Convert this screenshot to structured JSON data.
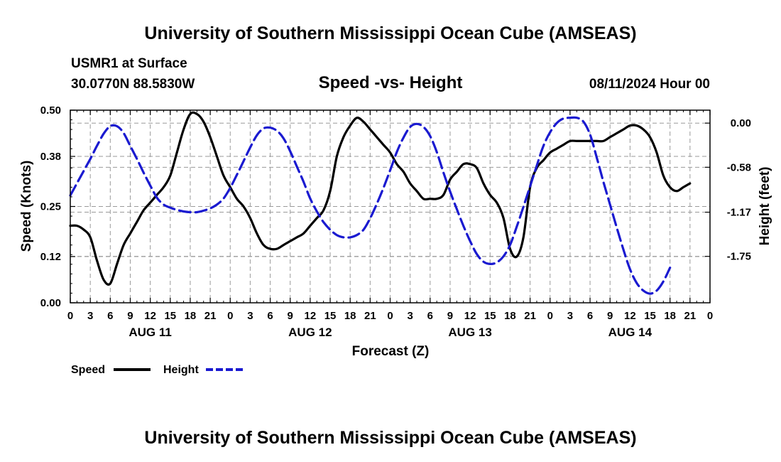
{
  "page": {
    "title_top": "University of Southern Mississippi Ocean Cube (AMSEAS)",
    "title_bottom": "University of Southern Mississippi Ocean Cube (AMSEAS)",
    "station": "USMR1 at Surface",
    "coords": "30.0770N  88.5830W",
    "date": "08/11/2024 Hour 00"
  },
  "chart_data": {
    "type": "line",
    "title": "Speed -vs- Height",
    "xlabel": "Forecast (Z)",
    "ylabel": "Speed (Knots)",
    "y2label": "Height (feet)",
    "ylim": [
      0,
      0.5
    ],
    "y2lim": [
      -2.36,
      0.17
    ],
    "xlim": [
      0,
      96
    ],
    "yticks": [
      "0.00",
      "0.12",
      "0.25",
      "0.38",
      "0.50"
    ],
    "y2ticks": [
      "0.00",
      "-0.58",
      "-1.17",
      "-1.75"
    ],
    "xtick_labels": [
      "0",
      "3",
      "6",
      "9",
      "12",
      "15",
      "18",
      "21",
      "0",
      "3",
      "6",
      "9",
      "12",
      "15",
      "18",
      "21",
      "0",
      "3",
      "6",
      "9",
      "12",
      "15",
      "18",
      "21",
      "0",
      "3",
      "6",
      "9",
      "12",
      "15",
      "18",
      "21",
      "0"
    ],
    "day_labels": [
      "AUG 11",
      "AUG 12",
      "AUG 13",
      "AUG 14"
    ],
    "grid": true,
    "legend": [
      "Speed",
      "Height"
    ],
    "series": [
      {
        "name": "Speed",
        "axis": "left",
        "color": "#000000",
        "style": "solid",
        "points": [
          [
            0,
            0.2
          ],
          [
            1,
            0.2
          ],
          [
            2,
            0.19
          ],
          [
            3,
            0.17
          ],
          [
            4,
            0.11
          ],
          [
            5,
            0.06
          ],
          [
            6,
            0.05
          ],
          [
            7,
            0.1
          ],
          [
            8,
            0.15
          ],
          [
            9,
            0.18
          ],
          [
            10,
            0.21
          ],
          [
            11,
            0.24
          ],
          [
            12,
            0.26
          ],
          [
            13,
            0.28
          ],
          [
            14,
            0.3
          ],
          [
            15,
            0.33
          ],
          [
            16,
            0.39
          ],
          [
            17,
            0.45
          ],
          [
            18,
            0.49
          ],
          [
            19,
            0.49
          ],
          [
            20,
            0.47
          ],
          [
            21,
            0.43
          ],
          [
            22,
            0.38
          ],
          [
            23,
            0.33
          ],
          [
            24,
            0.3
          ],
          [
            25,
            0.27
          ],
          [
            26,
            0.25
          ],
          [
            27,
            0.22
          ],
          [
            28,
            0.18
          ],
          [
            29,
            0.15
          ],
          [
            30,
            0.14
          ],
          [
            31,
            0.14
          ],
          [
            32,
            0.15
          ],
          [
            33,
            0.16
          ],
          [
            34,
            0.17
          ],
          [
            35,
            0.18
          ],
          [
            36,
            0.2
          ],
          [
            37,
            0.22
          ],
          [
            38,
            0.24
          ],
          [
            39,
            0.29
          ],
          [
            40,
            0.38
          ],
          [
            41,
            0.43
          ],
          [
            42,
            0.46
          ],
          [
            43,
            0.48
          ],
          [
            44,
            0.47
          ],
          [
            45,
            0.45
          ],
          [
            46,
            0.43
          ],
          [
            47,
            0.41
          ],
          [
            48,
            0.39
          ],
          [
            49,
            0.36
          ],
          [
            50,
            0.34
          ],
          [
            51,
            0.31
          ],
          [
            52,
            0.29
          ],
          [
            53,
            0.27
          ],
          [
            54,
            0.27
          ],
          [
            55,
            0.27
          ],
          [
            56,
            0.28
          ],
          [
            57,
            0.32
          ],
          [
            58,
            0.34
          ],
          [
            59,
            0.36
          ],
          [
            60,
            0.36
          ],
          [
            61,
            0.35
          ],
          [
            62,
            0.31
          ],
          [
            63,
            0.28
          ],
          [
            64,
            0.26
          ],
          [
            65,
            0.22
          ],
          [
            66,
            0.14
          ],
          [
            67,
            0.12
          ],
          [
            68,
            0.17
          ],
          [
            69,
            0.3
          ],
          [
            70,
            0.35
          ],
          [
            71,
            0.37
          ],
          [
            72,
            0.39
          ],
          [
            73,
            0.4
          ],
          [
            74,
            0.41
          ],
          [
            75,
            0.42
          ],
          [
            76,
            0.42
          ],
          [
            77,
            0.42
          ],
          [
            78,
            0.42
          ],
          [
            79,
            0.42
          ],
          [
            80,
            0.42
          ],
          [
            81,
            0.43
          ],
          [
            82,
            0.44
          ],
          [
            83,
            0.45
          ],
          [
            84,
            0.46
          ],
          [
            85,
            0.46
          ],
          [
            86,
            0.45
          ],
          [
            87,
            0.43
          ],
          [
            88,
            0.39
          ],
          [
            89,
            0.33
          ],
          [
            90,
            0.3
          ],
          [
            91,
            0.29
          ],
          [
            92,
            0.3
          ],
          [
            93,
            0.31
          ]
        ]
      },
      {
        "name": "Height",
        "axis": "right",
        "color": "#1a1ad0",
        "style": "dashed",
        "points": [
          [
            0,
            -0.95
          ],
          [
            1,
            -0.79
          ],
          [
            2,
            -0.63
          ],
          [
            3,
            -0.47
          ],
          [
            4,
            -0.3
          ],
          [
            5,
            -0.14
          ],
          [
            6,
            -0.04
          ],
          [
            7,
            -0.04
          ],
          [
            8,
            -0.13
          ],
          [
            9,
            -0.3
          ],
          [
            10,
            -0.47
          ],
          [
            11,
            -0.65
          ],
          [
            12,
            -0.82
          ],
          [
            13,
            -0.98
          ],
          [
            14,
            -1.07
          ],
          [
            15,
            -1.11
          ],
          [
            16,
            -1.14
          ],
          [
            17,
            -1.16
          ],
          [
            18,
            -1.17
          ],
          [
            19,
            -1.17
          ],
          [
            20,
            -1.15
          ],
          [
            21,
            -1.12
          ],
          [
            22,
            -1.07
          ],
          [
            23,
            -0.99
          ],
          [
            24,
            -0.85
          ],
          [
            25,
            -0.68
          ],
          [
            26,
            -0.5
          ],
          [
            27,
            -0.32
          ],
          [
            28,
            -0.16
          ],
          [
            29,
            -0.07
          ],
          [
            30,
            -0.06
          ],
          [
            31,
            -0.1
          ],
          [
            32,
            -0.2
          ],
          [
            33,
            -0.37
          ],
          [
            34,
            -0.57
          ],
          [
            35,
            -0.77
          ],
          [
            36,
            -0.99
          ],
          [
            37,
            -1.16
          ],
          [
            38,
            -1.3
          ],
          [
            39,
            -1.4
          ],
          [
            40,
            -1.47
          ],
          [
            41,
            -1.5
          ],
          [
            42,
            -1.5
          ],
          [
            43,
            -1.47
          ],
          [
            44,
            -1.4
          ],
          [
            45,
            -1.25
          ],
          [
            46,
            -1.06
          ],
          [
            47,
            -0.85
          ],
          [
            48,
            -0.62
          ],
          [
            49,
            -0.38
          ],
          [
            50,
            -0.19
          ],
          [
            51,
            -0.05
          ],
          [
            52,
            -0.01
          ],
          [
            53,
            -0.05
          ],
          [
            54,
            -0.17
          ],
          [
            55,
            -0.38
          ],
          [
            56,
            -0.65
          ],
          [
            57,
            -0.9
          ],
          [
            58,
            -1.13
          ],
          [
            59,
            -1.35
          ],
          [
            60,
            -1.55
          ],
          [
            61,
            -1.72
          ],
          [
            62,
            -1.82
          ],
          [
            63,
            -1.85
          ],
          [
            64,
            -1.83
          ],
          [
            65,
            -1.75
          ],
          [
            66,
            -1.6
          ],
          [
            67,
            -1.36
          ],
          [
            68,
            -1.1
          ],
          [
            69,
            -0.83
          ],
          [
            70,
            -0.56
          ],
          [
            71,
            -0.3
          ],
          [
            72,
            -0.12
          ],
          [
            73,
            0.0
          ],
          [
            74,
            0.06
          ],
          [
            75,
            0.07
          ],
          [
            76,
            0.07
          ],
          [
            77,
            0.02
          ],
          [
            78,
            -0.15
          ],
          [
            79,
            -0.45
          ],
          [
            80,
            -0.77
          ],
          [
            81,
            -1.07
          ],
          [
            82,
            -1.37
          ],
          [
            83,
            -1.66
          ],
          [
            84,
            -1.92
          ],
          [
            85,
            -2.1
          ],
          [
            86,
            -2.2
          ],
          [
            87,
            -2.24
          ],
          [
            88,
            -2.2
          ],
          [
            89,
            -2.08
          ],
          [
            90,
            -1.9
          ]
        ]
      }
    ]
  }
}
